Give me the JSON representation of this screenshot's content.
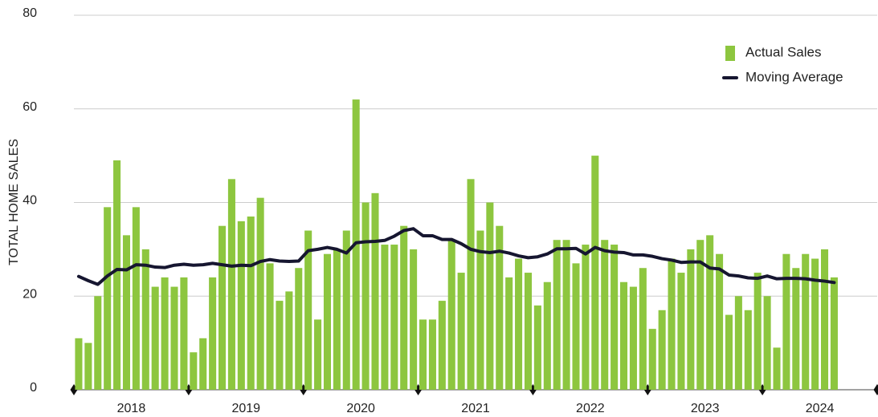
{
  "chart_data": {
    "type": "bar_line",
    "y_label": "TOTAL HOME SALES",
    "x_labels": [
      "2018",
      "2019",
      "2020",
      "2021",
      "2022",
      "2023",
      "2024"
    ],
    "ylim": [
      0,
      80
    ],
    "yticks": [
      0,
      20,
      40,
      60,
      80
    ],
    "grid": true,
    "legend": "top-right",
    "series": [
      {
        "name": "Actual Sales",
        "type": "bar",
        "color": "#8dc63f",
        "values": [
          11,
          10,
          20,
          39,
          49,
          33,
          39,
          30,
          22,
          24,
          22,
          24,
          8,
          11,
          24,
          35,
          45,
          36,
          37,
          41,
          27,
          19,
          21,
          26,
          34,
          15,
          29,
          30,
          34,
          62,
          40,
          42,
          31,
          31,
          35,
          30,
          15,
          15,
          19,
          32,
          25,
          45,
          34,
          40,
          35,
          24,
          28,
          25,
          18,
          23,
          32,
          32,
          27,
          31,
          50,
          32,
          31,
          23,
          22,
          26,
          13,
          17,
          28,
          25,
          30,
          32,
          33,
          29,
          16,
          20,
          17,
          25,
          20,
          9,
          29,
          26,
          29,
          28,
          30,
          24
        ]
      },
      {
        "name": "Moving Average",
        "type": "line",
        "color": "#161630",
        "values": [
          24.2,
          23.3,
          22.5,
          24.3,
          25.7,
          25.6,
          26.7,
          26.6,
          26.2,
          26.1,
          26.6,
          26.8,
          26.6,
          26.7,
          27.0,
          26.7,
          26.4,
          26.6,
          26.5,
          27.4,
          27.8,
          27.5,
          27.4,
          27.5,
          29.7,
          30.0,
          30.4,
          30.0,
          29.2,
          31.4,
          31.6,
          31.7,
          31.9,
          32.8,
          34.0,
          34.4,
          32.9,
          32.9,
          32.1,
          32.1,
          31.2,
          30.0,
          29.5,
          29.3,
          29.6,
          29.2,
          28.6,
          28.2,
          28.4,
          29.0,
          30.1,
          30.1,
          30.2,
          29.0,
          30.4,
          29.7,
          29.4,
          29.3,
          28.8,
          28.8,
          28.5,
          28.0,
          27.7,
          27.2,
          27.3,
          27.3,
          26.0,
          25.8,
          24.5,
          24.3,
          23.9,
          23.8,
          24.3,
          23.7,
          23.8,
          23.8,
          23.7,
          23.4,
          23.2,
          22.9
        ]
      }
    ]
  }
}
